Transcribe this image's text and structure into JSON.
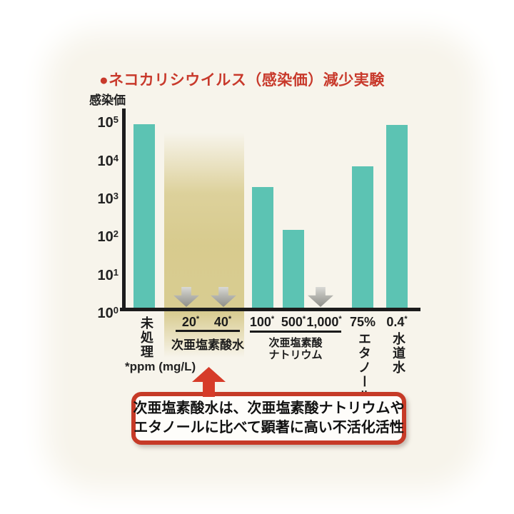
{
  "title": "●ネコカリシウイルス（感染価）減少実験",
  "chart_data": {
    "type": "bar",
    "title": "ネコカリシウイルス（感染価）減少実験",
    "ylabel": "感染価",
    "scale": "log10",
    "ylim_log10": [
      0,
      5
    ],
    "tick_base": "10",
    "tick_exponents": [
      5,
      4,
      3,
      2,
      1,
      0
    ],
    "grid": false,
    "bar_color": "#5cc3b3",
    "highlight_band_color": "#d6c98a",
    "footnote": "*ppm (mg/L)",
    "points": [
      {
        "label": "未処理",
        "group": "",
        "value_approx": "7×10^4",
        "log10": 4.83,
        "below_detection": false
      },
      {
        "label": "20*",
        "group": "次亜塩素酸水",
        "value_approx": "≦10^0",
        "log10": 0,
        "below_detection": true
      },
      {
        "label": "40*",
        "group": "次亜塩素酸水",
        "value_approx": "≦10^0",
        "log10": 0,
        "below_detection": true
      },
      {
        "label": "100*",
        "group": "次亜塩素酸ナトリウム",
        "value_approx": "1.6×10^3",
        "log10": 3.19,
        "below_detection": false
      },
      {
        "label": "500*",
        "group": "次亜塩素酸ナトリウム",
        "value_approx": "1.2×10^2",
        "log10": 2.06,
        "below_detection": false
      },
      {
        "label": "1,000*",
        "group": "次亜塩素酸ナトリウム",
        "value_approx": "≦10^0",
        "log10": 0,
        "below_detection": true
      },
      {
        "label": "75%",
        "group": "エタノール",
        "value_approx": "5×10^3",
        "log10": 3.72,
        "below_detection": false
      },
      {
        "label": "0.4*",
        "group": "水道水",
        "value_approx": "7×10^4",
        "log10": 4.81,
        "below_detection": false
      }
    ]
  },
  "labels": {
    "y_axis_title": "感染価",
    "dose": [
      {
        "num": "20",
        "mark": "*"
      },
      {
        "num": "40",
        "mark": "*"
      },
      {
        "num": "100",
        "mark": "*"
      },
      {
        "num": "500",
        "mark": "*"
      },
      {
        "num": "1,000",
        "mark": "*"
      },
      {
        "num": "75%",
        "mark": ""
      },
      {
        "num": "0.4",
        "mark": "*"
      }
    ],
    "group_hocl": "次亜塩素酸水",
    "group_naocl_line1": "次亜塩素酸",
    "group_naocl_line2": "ナトリウム",
    "cat_untreated": "未処理",
    "cat_ethanol": "エタノール",
    "cat_tapwater": "水道水",
    "footnote": "*ppm (mg/L)"
  },
  "callout": {
    "line1": "次亜塩素酸水は、次亜塩素酸ナトリウムや",
    "line2": "エタノールに比べて顕著に高い不活化活性",
    "border_color": "#c63a27"
  },
  "colors": {
    "title_red": "#c8392b",
    "bar_teal": "#5cc3b3",
    "band_tan": "#d6c98a",
    "axis_black": "#1c1c1c",
    "arrow_gray": "#8e8e88",
    "callout_red": "#c63a27",
    "background_cream": "#f7f4eb"
  }
}
